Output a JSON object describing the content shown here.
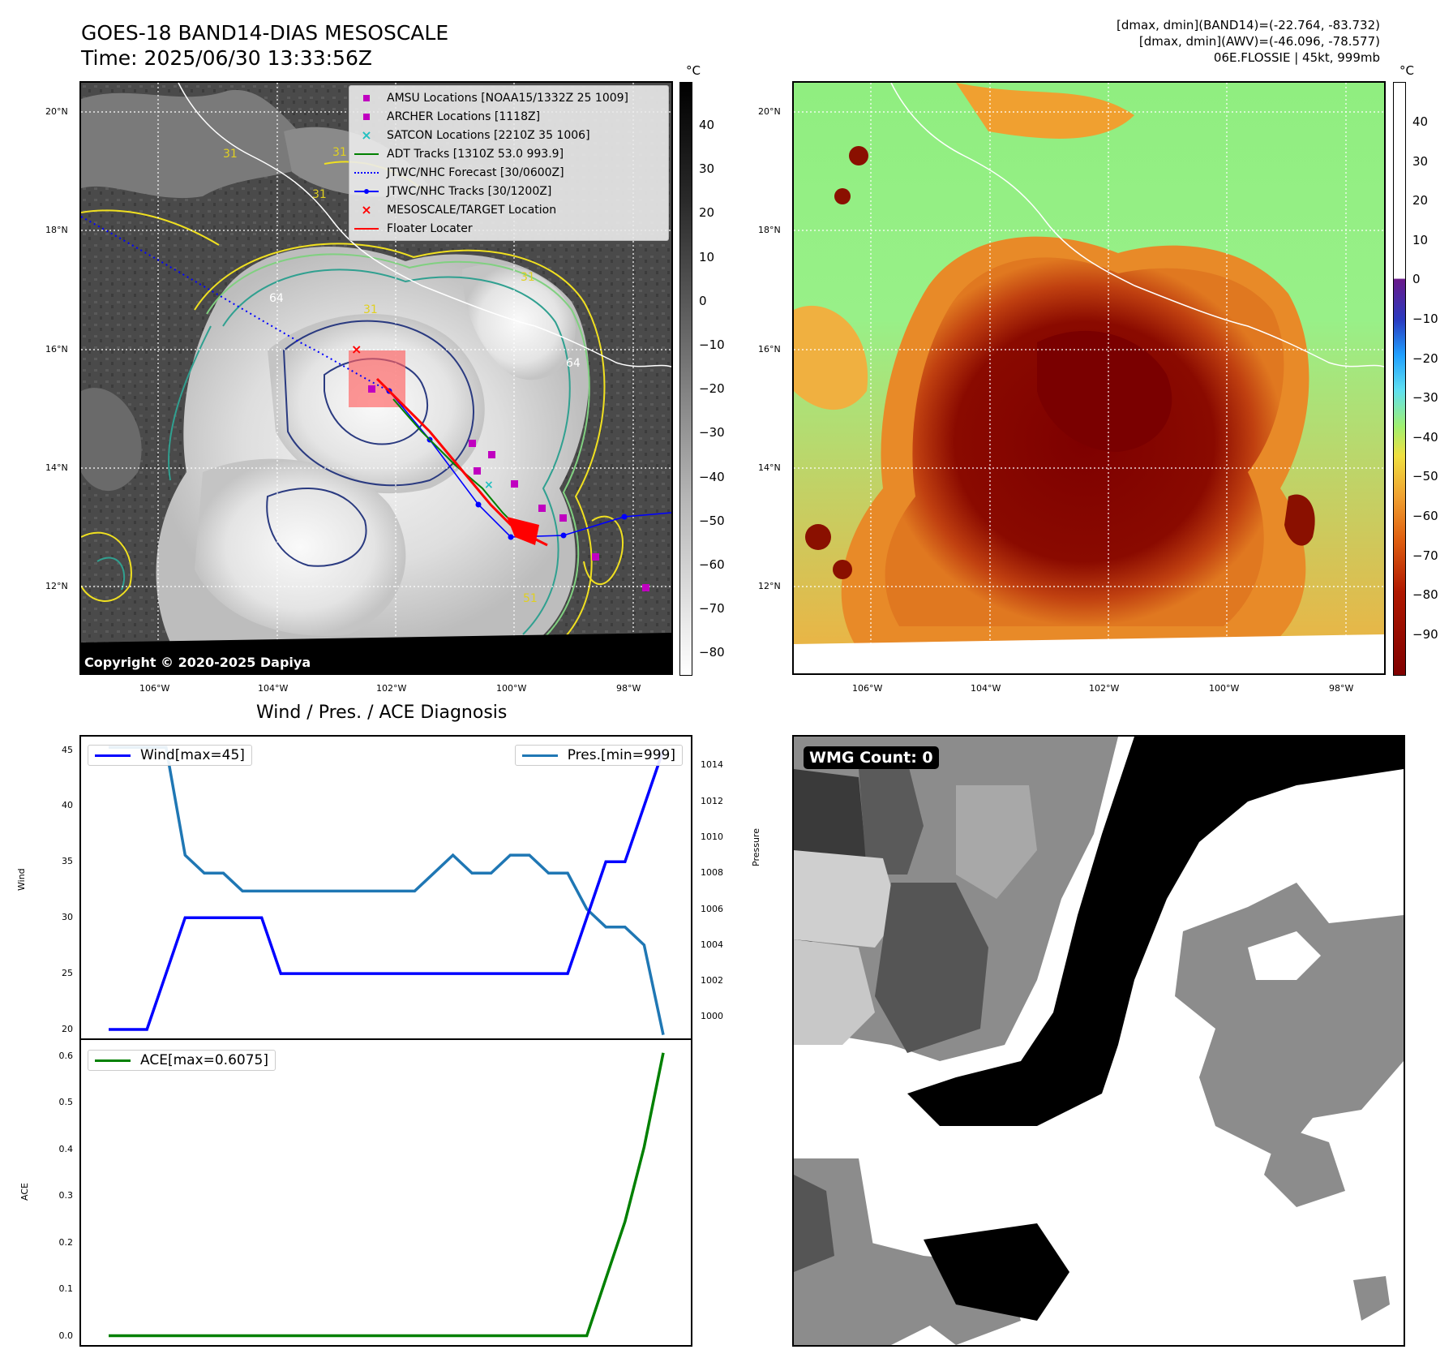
{
  "header": {
    "title_line1": "GOES-18 BAND14-DIAS MESOSCALE",
    "title_line2": "Time: 2025/06/30 13:33:56Z",
    "info_line1": "[dmax, dmin](BAND14)=(-22.764, -83.732)",
    "info_line2": "[dmax, dmin](AWV)=(-46.096, -78.577)",
    "info_line3": "06E.FLOSSIE | 45kt, 999mb"
  },
  "map_axes": {
    "lat_labels": [
      "20°N",
      "18°N",
      "16°N",
      "14°N",
      "12°N"
    ],
    "lon_labels": [
      "106°W",
      "104°W",
      "102°W",
      "100°W",
      "98°W"
    ]
  },
  "ir_panel": {
    "legend": [
      {
        "label": "AMSU Locations [NOAA15/1332Z 25 1009]",
        "symbol": "square",
        "color": "#c000c0"
      },
      {
        "label": "ARCHER Locations [1118Z]",
        "symbol": "square",
        "color": "#c000c0"
      },
      {
        "label": "SATCON Locations [2210Z 35 1006]",
        "symbol": "x",
        "color": "#20c0c0"
      },
      {
        "label": "ADT Tracks [1310Z 53.0 993.9]",
        "symbol": "line",
        "color": "#008000"
      },
      {
        "label": "JTWC/NHC Forecast [30/0600Z]",
        "symbol": "dotted",
        "color": "#0000ff"
      },
      {
        "label": "JTWC/NHC Tracks [30/1200Z]",
        "symbol": "line-dot",
        "color": "#0000ff"
      },
      {
        "label": "MESOSCALE/TARGET Location",
        "symbol": "x",
        "color": "#ff0000"
      },
      {
        "label": "Floater Locater",
        "symbol": "line",
        "color": "#ff0000"
      }
    ],
    "contour_labels": [
      "31",
      "31",
      "31",
      "31",
      "64",
      "64",
      "31",
      "51"
    ],
    "copyright": "Copyright © 2020-2025 Dapiya",
    "colorbar": {
      "unit": "°C",
      "ticks": [
        "40",
        "30",
        "20",
        "10",
        "0",
        "−10",
        "−20",
        "−30",
        "−40",
        "−50",
        "−60",
        "−70",
        "−80"
      ]
    }
  },
  "awv_panel": {
    "colorbar": {
      "unit": "°C",
      "ticks": [
        "40",
        "30",
        "20",
        "10",
        "0",
        "−10",
        "−20",
        "−30",
        "−40",
        "−50",
        "−60",
        "−70",
        "−80",
        "−90"
      ]
    }
  },
  "wmg_panel": {
    "label": "WMG Count: 0"
  },
  "chart_data": [
    {
      "type": "line",
      "title": "Wind / Pres. / ACE Diagnosis",
      "ylabel": "Wind",
      "y2label": "Pressure",
      "ylim": [
        19.2,
        46.2
      ],
      "y2lim": [
        998.8,
        1015.6
      ],
      "yticks": [
        "45",
        "40",
        "35",
        "30",
        "25",
        "20"
      ],
      "y2ticks": [
        "1014",
        "1012",
        "1010",
        "1008",
        "1006",
        "1004",
        "1002",
        "1000"
      ],
      "series": [
        {
          "name": "Wind[max=45]",
          "axis": "left",
          "color": "#0000ff",
          "values": [
            20,
            20,
            20,
            25,
            30,
            30,
            30,
            30,
            30,
            25,
            25,
            25,
            25,
            25,
            25,
            25,
            25,
            25,
            25,
            25,
            25,
            25,
            25,
            25,
            25,
            30,
            35,
            35,
            40,
            45
          ]
        },
        {
          "name": "Pres.[min=999]",
          "axis": "right",
          "color": "#1f77b4",
          "values": [
            1015,
            1015,
            1015,
            1015,
            1009,
            1008,
            1008,
            1007,
            1007,
            1007,
            1007,
            1007,
            1007,
            1007,
            1007,
            1007,
            1007,
            1008,
            1009,
            1008,
            1008,
            1009,
            1009,
            1008,
            1008,
            1006,
            1005,
            1005,
            1004,
            999
          ]
        }
      ]
    },
    {
      "type": "line",
      "ylabel": "ACE",
      "ylim": [
        -0.02,
        0.635
      ],
      "yticks": [
        "0.6",
        "0.5",
        "0.4",
        "0.3",
        "0.2",
        "0.1",
        "0.0"
      ],
      "series": [
        {
          "name": "ACE[max=0.6075]",
          "color": "#008000",
          "values": [
            0,
            0,
            0,
            0,
            0,
            0,
            0,
            0,
            0,
            0,
            0,
            0,
            0,
            0,
            0,
            0,
            0,
            0,
            0,
            0,
            0,
            0,
            0,
            0,
            0,
            0,
            0.1225,
            0.245,
            0.405,
            0.6075
          ]
        }
      ]
    }
  ]
}
